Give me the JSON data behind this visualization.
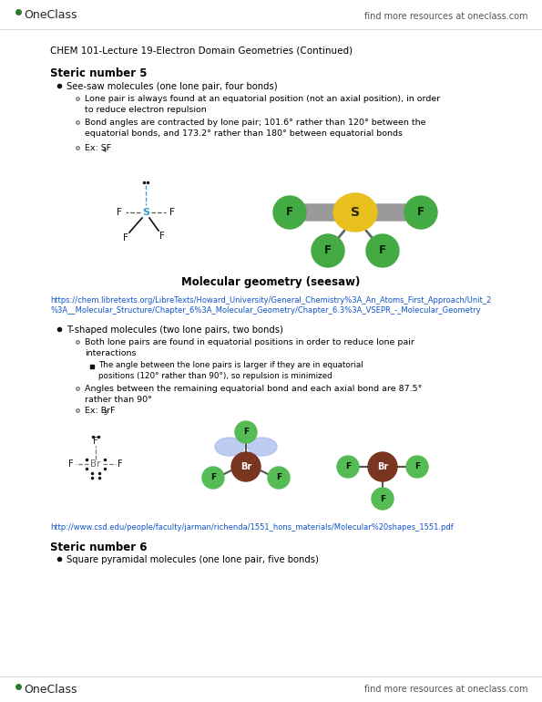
{
  "bg_color": "#ffffff",
  "header_right_text": "find more resources at oneclass.com",
  "page_title": "CHEM 101-Lecture 19-Electron Domain Geometries (Continued)",
  "section1_title": "Steric number 5",
  "bullet1": "See-saw molecules (one lone pair, four bonds)",
  "sub1a": "Lone pair is always found at an equatorial position (not an axial position), in order\nto reduce electron repulsion",
  "sub1b": "Bond angles are contracted by lone pair; 101.6° rather than 120° between the\nequatorial bonds, and 173.2° rather than 180° between equatorial bonds",
  "sub1c_prefix": "Ex: SF",
  "sub1c_sub": "4",
  "caption1": "Molecular geometry (seesaw)",
  "url1_line1": "https://chem.libretexts.org/LibreTexts/Howard_University/General_Chemistry%3A_An_Atoms_First_Approach/Unit_2",
  "url1_line2": "%3A__Molecular_Structure/Chapter_6%3A_Molecular_Geometry/Chapter_6.3%3A_VSEPR_-_Molecular_Geometry",
  "bullet2": "T-shaped molecules (two lone pairs, two bonds)",
  "sub2a": "Both lone pairs are found in equatorial positions in order to reduce lone pair\ninteractions",
  "sub2a1": "The angle between the lone pairs is larger if they are in equatorial\npositions (120° rather than 90°), so repulsion is minimized",
  "sub2b": "Angles between the remaining equatorial bond and each axial bond are 87.5°\nrather than 90°",
  "sub2c_prefix": "Ex: BrF",
  "sub2c_sub": "3",
  "url2": "http://www.csd.edu/people/faculty/jarman/richenda/1551_hons_materials/Molecular%20shapes_1551.pdf",
  "section2_title": "Steric number 6",
  "bullet3": "Square pyramidal molecules (one lone pair, five bonds)",
  "logo_color": "#2d7a2d",
  "link_color": "#1155CC",
  "text_color": "#000000",
  "title_fontsize": 7.5,
  "body_fontsize": 7.2,
  "bold_fontsize": 8.0,
  "small_fontsize": 6.8
}
